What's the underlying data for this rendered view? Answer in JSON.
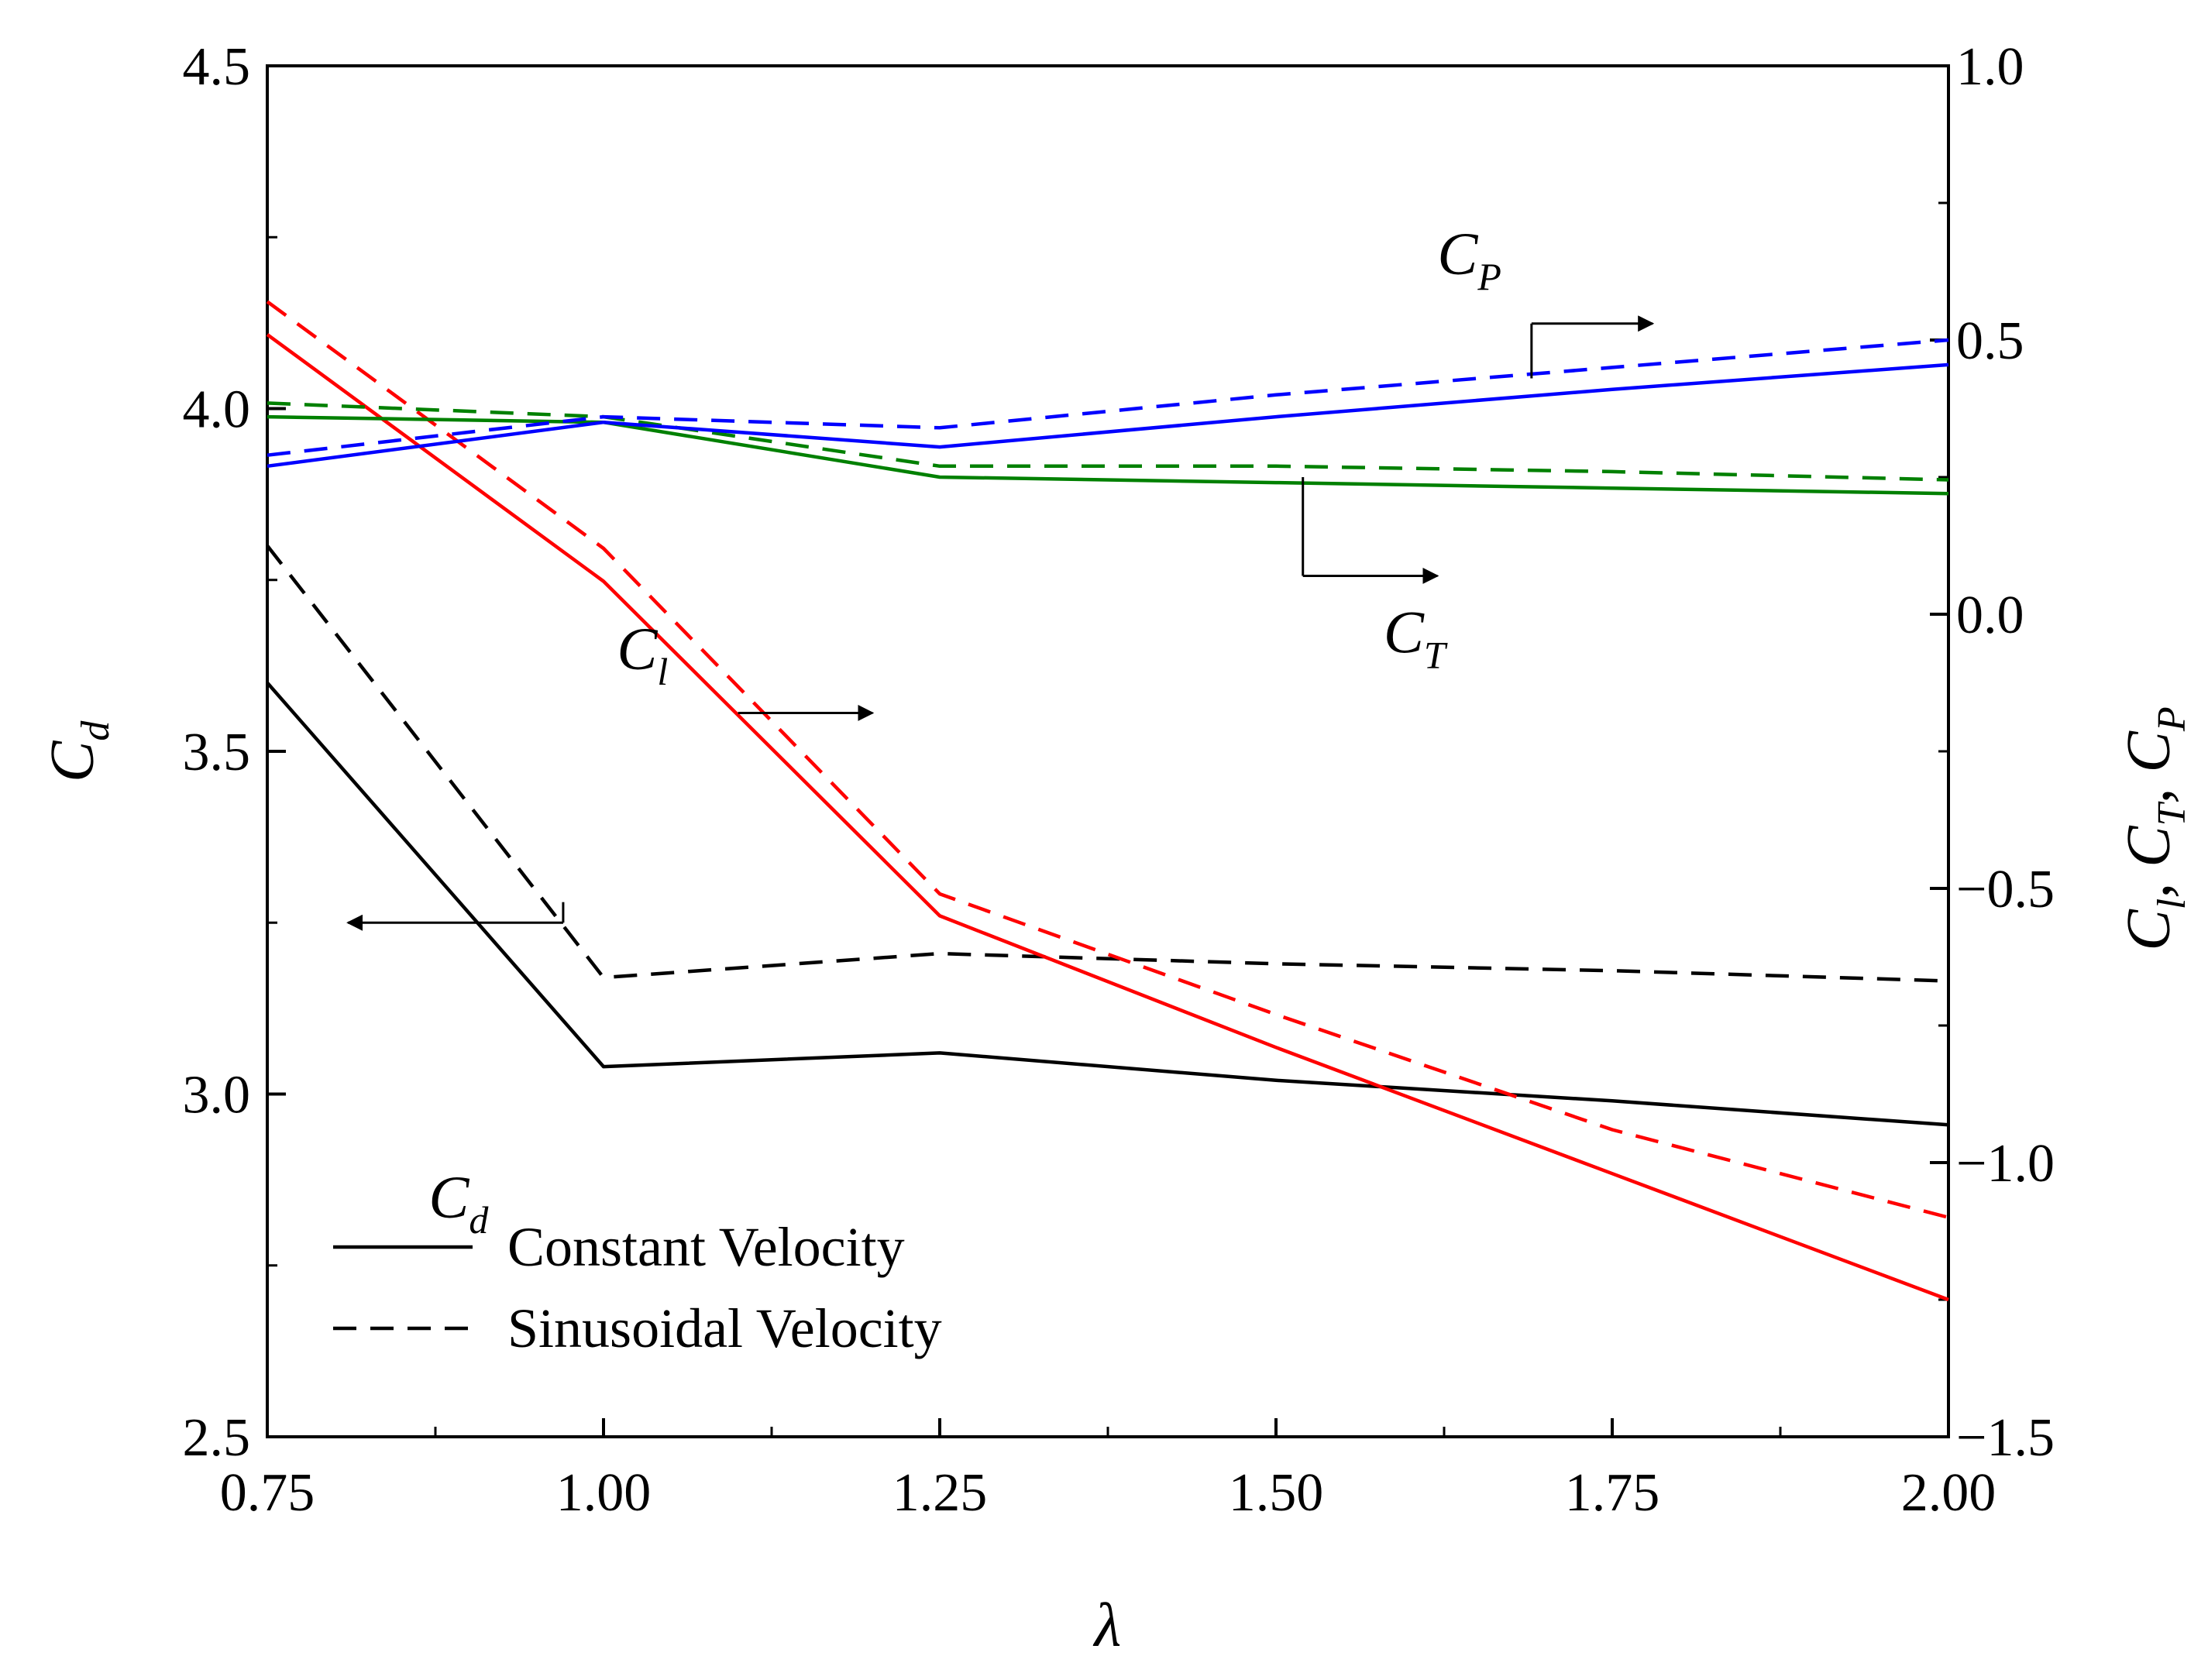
{
  "chart_data": {
    "type": "line",
    "x": [
      0.75,
      1.0,
      1.25,
      1.5,
      1.75,
      2.0
    ],
    "xlabel": "λ",
    "ylabel_left": {
      "main": "C",
      "sub": "d"
    },
    "ylabel_right": [
      {
        "main": "C",
        "sub": "l",
        "sep": ", "
      },
      {
        "main": "C",
        "sub": "T",
        "sep": ", "
      },
      {
        "main": "C",
        "sub": "P",
        "sep": ""
      }
    ],
    "xlim": [
      0.75,
      2.0
    ],
    "ylim_left": [
      2.5,
      4.5
    ],
    "ylim_right": [
      -1.5,
      1.0
    ],
    "x_ticks": [
      0.75,
      1.0,
      1.25,
      1.5,
      1.75,
      2.0
    ],
    "x_tick_labels": [
      "0.75",
      "1.00",
      "1.25",
      "1.50",
      "1.75",
      "2.00"
    ],
    "y_left_ticks": [
      2.5,
      3.0,
      3.5,
      4.0,
      4.5
    ],
    "y_left_tick_labels": [
      "2.5",
      "3.0",
      "3.5",
      "4.0",
      "4.5"
    ],
    "y_right_ticks": [
      -1.5,
      -1.0,
      -0.5,
      0.0,
      0.5,
      1.0
    ],
    "y_right_tick_labels": [
      "−1.5",
      "−1.0",
      "−0.5",
      "0.0",
      "0.5",
      "1.0"
    ],
    "grid": false,
    "legend": {
      "position": "bottom-left",
      "entries": [
        {
          "label": "Constant Velocity",
          "style": "solid"
        },
        {
          "label": "Sinusoidal Velocity",
          "style": "dashed"
        }
      ]
    },
    "series": [
      {
        "quantity": "Cd",
        "variant": "constant",
        "axis": "left",
        "color": "#000000",
        "dashed": false,
        "x": [
          0.75,
          1.0,
          1.25,
          1.5,
          1.75,
          2.0
        ],
        "y": [
          3.6,
          3.04,
          3.06,
          3.02,
          2.99,
          2.955
        ]
      },
      {
        "quantity": "Cd",
        "variant": "sinusoidal",
        "axis": "left",
        "color": "#000000",
        "dashed": true,
        "x": [
          0.75,
          1.0,
          1.25,
          1.5,
          1.75,
          2.0
        ],
        "y": [
          3.8,
          3.17,
          3.205,
          3.19,
          3.18,
          3.165
        ]
      },
      {
        "quantity": "Cl",
        "variant": "constant",
        "axis": "right",
        "color": "#ff0000",
        "dashed": false,
        "x": [
          0.75,
          1.0,
          1.25,
          1.5,
          1.75,
          2.0
        ],
        "y": [
          0.51,
          0.06,
          -0.55,
          -0.79,
          -1.02,
          -1.25
        ]
      },
      {
        "quantity": "Cl",
        "variant": "sinusoidal",
        "axis": "right",
        "color": "#ff0000",
        "dashed": true,
        "x": [
          0.75,
          1.0,
          1.25,
          1.5,
          1.75,
          2.0
        ],
        "y": [
          0.57,
          0.12,
          -0.51,
          -0.73,
          -0.94,
          -1.1
        ]
      },
      {
        "quantity": "CT",
        "variant": "constant",
        "axis": "right",
        "color": "#008000",
        "dashed": false,
        "x": [
          0.75,
          1.0,
          1.25,
          1.5,
          1.75,
          2.0
        ],
        "y": [
          0.36,
          0.35,
          0.25,
          0.24,
          0.23,
          0.22
        ]
      },
      {
        "quantity": "CT",
        "variant": "sinusoidal",
        "axis": "right",
        "color": "#008000",
        "dashed": true,
        "x": [
          0.75,
          1.0,
          1.25,
          1.5,
          1.75,
          2.0
        ],
        "y": [
          0.385,
          0.36,
          0.27,
          0.27,
          0.26,
          0.245
        ]
      },
      {
        "quantity": "CP",
        "variant": "constant",
        "axis": "right",
        "color": "#0000ff",
        "dashed": false,
        "x": [
          0.75,
          1.0,
          1.25,
          1.5,
          1.75,
          2.0
        ],
        "y": [
          0.27,
          0.35,
          0.305,
          0.36,
          0.41,
          0.455
        ]
      },
      {
        "quantity": "CP",
        "variant": "sinusoidal",
        "axis": "right",
        "color": "#0000ff",
        "dashed": true,
        "x": [
          0.75,
          1.0,
          1.25,
          1.5,
          1.75,
          2.0
        ],
        "y": [
          0.29,
          0.36,
          0.34,
          0.4,
          0.45,
          0.5
        ]
      }
    ],
    "annotations": [
      {
        "main": "C",
        "sub": "P",
        "color": "#0000ff",
        "text_at": [
          1.62,
          0.62
        ],
        "arrow_from": [
          1.69,
          0.53
        ],
        "arrow_to": [
          1.78,
          0.53
        ],
        "stem_from": [
          1.69,
          0.43
        ],
        "stem_to": [
          1.69,
          0.53
        ]
      },
      {
        "main": "C",
        "sub": "T",
        "color": "#008000",
        "text_at": [
          1.58,
          -0.07
        ],
        "arrow_from": [
          1.52,
          0.07
        ],
        "arrow_to": [
          1.62,
          0.07
        ],
        "stem_from": [
          1.52,
          0.25
        ],
        "stem_to": [
          1.52,
          0.07
        ]
      },
      {
        "main": "C",
        "sub": "l",
        "color": "#ff0000",
        "text_at": [
          1.01,
          -0.1
        ],
        "arrow_from": [
          1.1,
          -0.18
        ],
        "arrow_to": [
          1.2,
          -0.18
        ],
        "stem_from": null,
        "stem_to": null
      },
      {
        "main": "C",
        "sub": "d",
        "color": "#000000",
        "text_at": [
          0.87,
          2.82
        ],
        "arrow_from": [
          0.97,
          3.25
        ],
        "arrow_to": [
          0.81,
          3.25
        ],
        "stem_from": [
          0.97,
          3.28
        ],
        "stem_to": [
          0.97,
          3.25
        ],
        "axis": "left"
      }
    ]
  }
}
